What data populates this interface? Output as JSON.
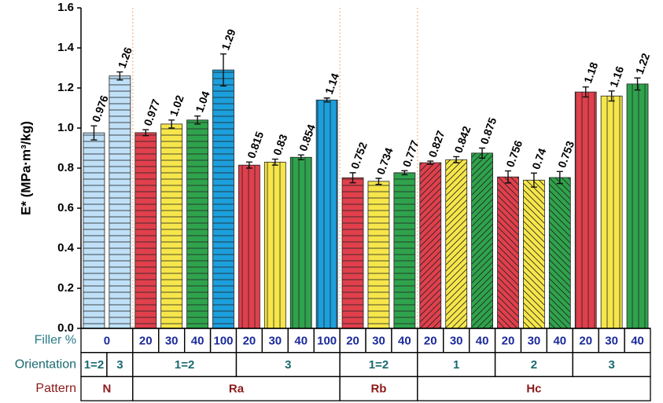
{
  "chart_data": {
    "type": "bar",
    "y_label": "E* (MPa·m³/kg)",
    "ylim": [
      0,
      1.6
    ],
    "yticks": [
      {
        "value": 0,
        "label": "0.0"
      },
      0.2,
      0.4,
      0.6,
      0.8,
      {
        "value": 1,
        "label": "1.0"
      },
      1.2,
      1.4,
      1.6
    ],
    "values": [
      0.976,
      1.26,
      0.977,
      1.02,
      1.04,
      1.29,
      0.815,
      0.83,
      0.854,
      1.14,
      0.752,
      0.734,
      0.777,
      0.827,
      0.842,
      0.875,
      0.756,
      0.74,
      0.753,
      1.18,
      1.16,
      1.22
    ],
    "errors": [
      0.035,
      0.02,
      0.015,
      0.02,
      0.02,
      0.08,
      0.015,
      0.015,
      0.012,
      0.01,
      0.025,
      0.015,
      0.01,
      0.008,
      0.015,
      0.025,
      0.03,
      0.035,
      0.03,
      0.025,
      0.025,
      0.03
    ],
    "colors": [
      "#bfe0f7",
      "#bfe0f7",
      "#e0404c",
      "#f6e64a",
      "#2fa34c",
      "#1c9fdc",
      "#e0404c",
      "#f6e64a",
      "#2fa34c",
      "#1c9fdc",
      "#e0404c",
      "#f6e64a",
      "#2fa34c",
      "#e0404c",
      "#f6e64a",
      "#2fa34c",
      "#e0404c",
      "#f6e64a",
      "#2fa34c",
      "#e0404c",
      "#f6e64a",
      "#2fa34c"
    ],
    "hatches": [
      "horizontal",
      "horizontal",
      "horizontal",
      "horizontal",
      "horizontal",
      "horizontal",
      "vertical",
      "vertical",
      "vertical",
      "vertical",
      "horizontal",
      "horizontal",
      "horizontal",
      "diagonal-up",
      "diagonal-up",
      "diagonal-up",
      "diagonal-down",
      "diagonal-down",
      "diagonal-down",
      "vertical",
      "vertical",
      "vertical"
    ],
    "category_rows": [
      {
        "name": "Filler %",
        "color": "#1a2a9a",
        "name_color": "#2a7a8a",
        "cells": [
          {
            "label": "0",
            "span": 2
          },
          {
            "label": "20",
            "span": 1
          },
          {
            "label": "30",
            "span": 1
          },
          {
            "label": "40",
            "span": 1
          },
          {
            "label": "100",
            "span": 1
          },
          {
            "label": "20",
            "span": 1
          },
          {
            "label": "30",
            "span": 1
          },
          {
            "label": "40",
            "span": 1
          },
          {
            "label": "100",
            "span": 1
          },
          {
            "label": "20",
            "span": 1
          },
          {
            "label": "30",
            "span": 1
          },
          {
            "label": "40",
            "span": 1
          },
          {
            "label": "20",
            "span": 1
          },
          {
            "label": "30",
            "span": 1
          },
          {
            "label": "40",
            "span": 1
          },
          {
            "label": "20",
            "span": 1
          },
          {
            "label": "30",
            "span": 1
          },
          {
            "label": "40",
            "span": 1
          },
          {
            "label": "20",
            "span": 1
          },
          {
            "label": "30",
            "span": 1
          },
          {
            "label": "40",
            "span": 1
          }
        ]
      },
      {
        "name": "Orientation",
        "color": "#1a6a70",
        "name_color": "#1a6a70",
        "cells": [
          {
            "label": "1=2",
            "span": 1
          },
          {
            "label": "3",
            "span": 1
          },
          {
            "label": "1=2",
            "span": 4
          },
          {
            "label": "3",
            "span": 4
          },
          {
            "label": "1=2",
            "span": 3
          },
          {
            "label": "1",
            "span": 3
          },
          {
            "label": "2",
            "span": 3
          },
          {
            "label": "3",
            "span": 3
          }
        ]
      },
      {
        "name": "Pattern",
        "color": "#8b1a1a",
        "name_color": "#8b1a1a",
        "separators": true,
        "cells": [
          {
            "label": "N",
            "span": 2
          },
          {
            "label": "Ra",
            "span": 8
          },
          {
            "label": "Rb",
            "span": 3
          },
          {
            "label": "Hc",
            "span": 9
          }
        ]
      }
    ]
  }
}
